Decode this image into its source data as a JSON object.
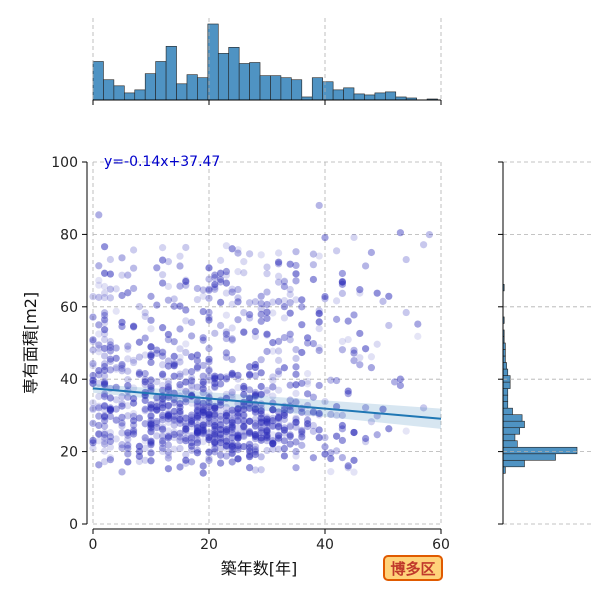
{
  "chart_data": {
    "type": "scatter",
    "xlabel": "築年数[年]",
    "ylabel": "専有面積[m2]",
    "xlim": [
      0,
      60
    ],
    "ylim": [
      0,
      100
    ],
    "x_ticks": [
      "0",
      "20",
      "40",
      "60"
    ],
    "y_ticks": [
      "0",
      "20",
      "40",
      "60",
      "80",
      "100"
    ],
    "grid": true,
    "regression": {
      "label": "y=-0.14x+37.47",
      "slope": -0.14,
      "intercept": 37.47,
      "color": "#1f77b4"
    },
    "point_color": "#2a2ab8",
    "histogram_color": "#4f93c3",
    "x_hist": {
      "bin_width": 1.8,
      "start": 0,
      "counts": [
        38,
        20,
        14,
        7,
        10,
        26,
        38,
        53,
        16,
        25,
        22,
        75,
        46,
        52,
        36,
        37,
        24,
        24,
        22,
        20,
        3,
        22,
        18,
        10,
        12,
        6,
        5,
        7,
        8,
        3,
        2,
        0,
        1
      ]
    },
    "y_hist": {
      "bin_width": 1.8,
      "start": 14,
      "counts": [
        2,
        18,
        44,
        62,
        12,
        10,
        14,
        18,
        16,
        8,
        4,
        4,
        4,
        6,
        6,
        4,
        3,
        2,
        2,
        2,
        1,
        1,
        0,
        1,
        0,
        0,
        0,
        0,
        1,
        0,
        0,
        0,
        0,
        0
      ]
    },
    "scatter_clusters": [
      {
        "cx": 22,
        "cy": 26,
        "sx": 11,
        "sy": 5,
        "n": 520
      },
      {
        "cx": 16,
        "cy": 38,
        "sx": 10,
        "sy": 7,
        "n": 240
      },
      {
        "cx": 22,
        "cy": 62,
        "sx": 14,
        "sy": 8,
        "n": 190
      },
      {
        "cx": 2,
        "cy": 45,
        "sx": 1.2,
        "sy": 18,
        "n": 70
      },
      {
        "cx": 35,
        "cy": 45,
        "sx": 12,
        "sy": 18,
        "n": 110
      }
    ]
  },
  "badge": {
    "label": "博多区"
  }
}
